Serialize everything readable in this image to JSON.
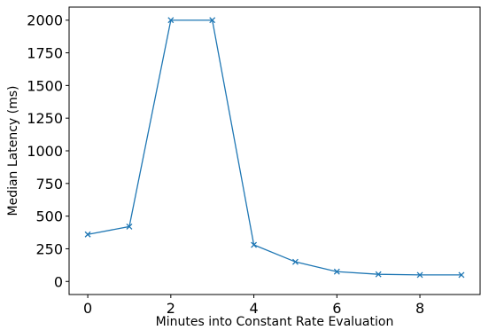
{
  "chart_data": {
    "type": "line",
    "title": "",
    "xlabel": "Minutes into Constant Rate Evaluation",
    "ylabel": "Median Latency (ms)",
    "xlim": [
      -0.45,
      9.45
    ],
    "ylim": [
      -100,
      2100
    ],
    "xticks": [
      0,
      2,
      4,
      6,
      8
    ],
    "yticks": [
      0,
      250,
      500,
      750,
      1000,
      1250,
      1500,
      1750,
      2000
    ],
    "grid": false,
    "series": [
      {
        "marker": "x",
        "color": "#1f77b4",
        "x": [
          0,
          1,
          2,
          3,
          4,
          5,
          6,
          7,
          8,
          9
        ],
        "y": [
          360,
          420,
          2000,
          2000,
          280,
          150,
          75,
          55,
          50,
          50
        ]
      }
    ]
  }
}
